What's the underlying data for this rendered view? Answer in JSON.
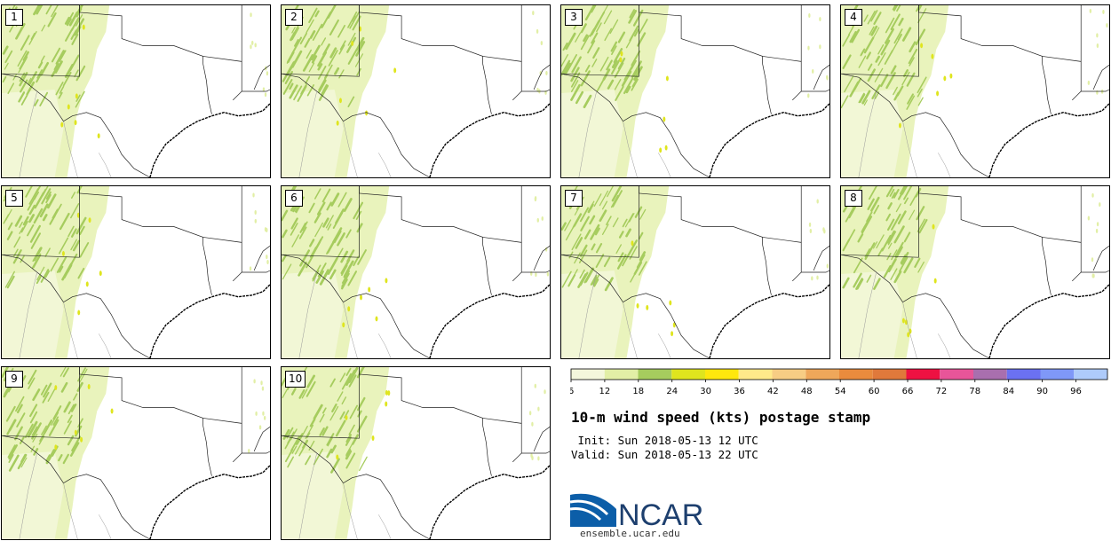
{
  "members": [
    "1",
    "2",
    "3",
    "4",
    "5",
    "6",
    "7",
    "8",
    "9",
    "10"
  ],
  "colorbar": {
    "ticks": [
      "6",
      "12",
      "18",
      "24",
      "30",
      "36",
      "42",
      "48",
      "54",
      "60",
      "66",
      "72",
      "78",
      "84",
      "90",
      "96"
    ],
    "colors": [
      "#f4f7dc",
      "#e2efa6",
      "#a6cc5e",
      "#dfe51e",
      "#ffe70d",
      "#ffe98a",
      "#f7cd84",
      "#efa75a",
      "#e98b3d",
      "#e0793b",
      "#ee1142",
      "#e85599",
      "#a96fae",
      "#6b71f1",
      "#7f98f8",
      "#aecbfb"
    ]
  },
  "title": "10-m wind speed (kts) postage stamp",
  "init": " Init: Sun 2018-05-13 12 UTC",
  "valid": "Valid: Sun 2018-05-13 22 UTC",
  "logo_text": "NCAR",
  "logo_url": "ensemble.ucar.edu",
  "colors": {
    "border": "#000000",
    "map_lines": "#222222",
    "light_wind": "#e2efa6",
    "medium_wind": "#a6cc5e"
  }
}
